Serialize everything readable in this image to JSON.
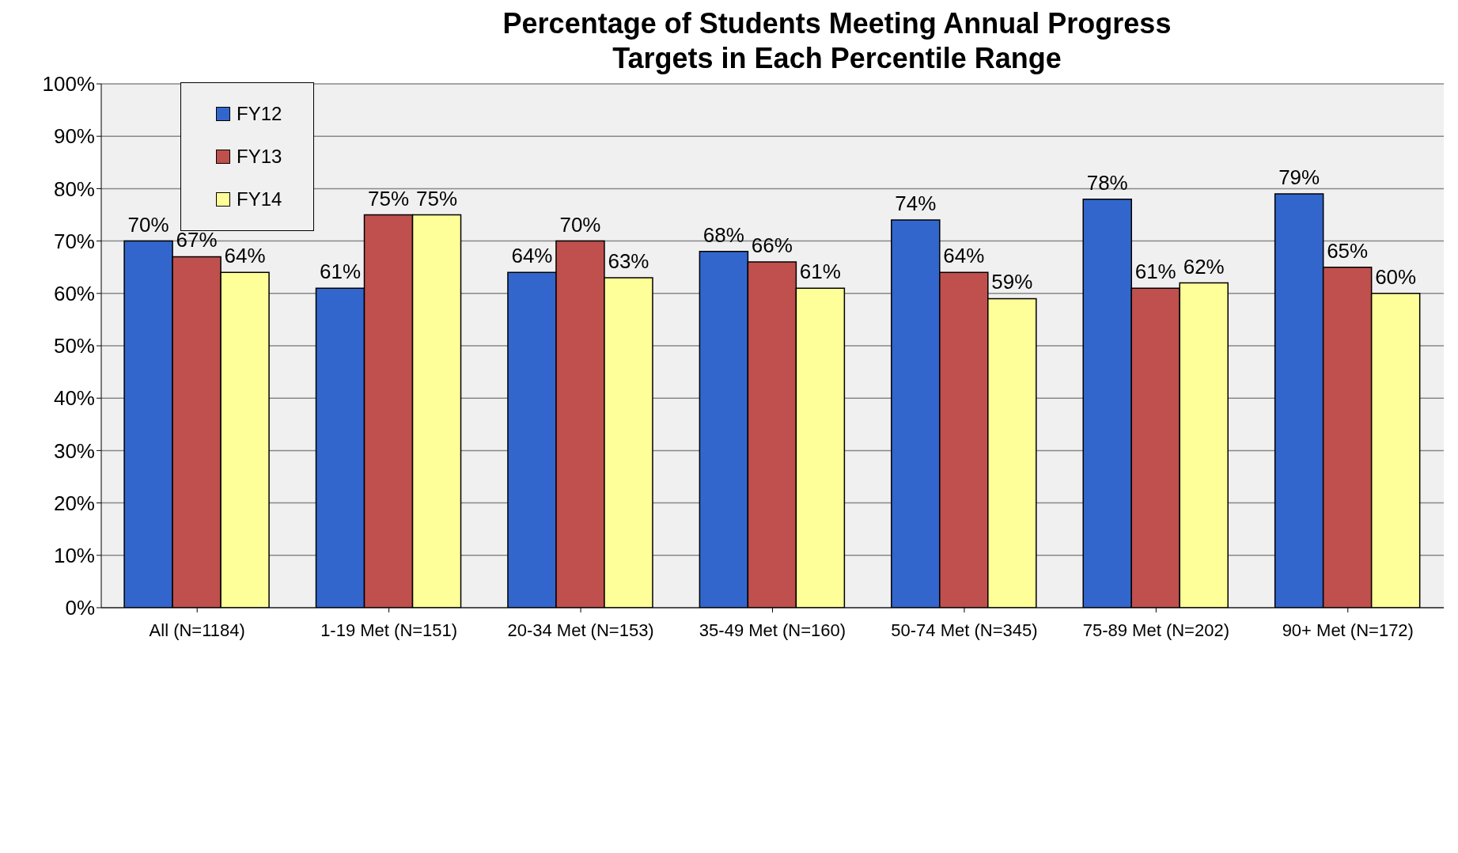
{
  "chart_data": {
    "type": "bar",
    "title": "Percentage of Students Meeting Annual Progress Targets in Each Percentile Range",
    "categories": [
      "All (N=1184)",
      "1-19 Met (N=151)",
      "20-34 Met (N=153)",
      "35-49 Met (N=160)",
      "50-74 Met (N=345)",
      "75-89 Met (N=202)",
      "90+  Met (N=172)"
    ],
    "series": [
      {
        "name": "FY12",
        "color": "#3366cc",
        "values": [
          70,
          61,
          64,
          68,
          74,
          78,
          79
        ],
        "value_labels": [
          "70%",
          "61%",
          "64%",
          "68%",
          "74%",
          "78%",
          "79%"
        ]
      },
      {
        "name": "FY13",
        "color": "#c0504d",
        "values": [
          67,
          75,
          70,
          66,
          64,
          61,
          65
        ],
        "value_labels": [
          "67%",
          "75%",
          "70%",
          "66%",
          "64%",
          "61%",
          "65%"
        ]
      },
      {
        "name": "FY14",
        "color": "#ffff99",
        "values": [
          64,
          75,
          63,
          61,
          59,
          62,
          60
        ],
        "value_labels": [
          "64%",
          "75%",
          "63%",
          "61%",
          "59%",
          "62%",
          "60%"
        ]
      }
    ],
    "ylim": [
      0,
      100
    ],
    "yticks": [
      {
        "value": 0,
        "label": "0%"
      },
      {
        "value": 10,
        "label": "10%"
      },
      {
        "value": 20,
        "label": "20%"
      },
      {
        "value": 30,
        "label": "30%"
      },
      {
        "value": 40,
        "label": "40%"
      },
      {
        "value": 50,
        "label": "50%"
      },
      {
        "value": 60,
        "label": "60%"
      },
      {
        "value": 70,
        "label": "70%"
      },
      {
        "value": 80,
        "label": "80%"
      },
      {
        "value": 90,
        "label": "90%"
      },
      {
        "value": 100,
        "label": "100%"
      }
    ],
    "grid": "y",
    "legend": "top left"
  }
}
